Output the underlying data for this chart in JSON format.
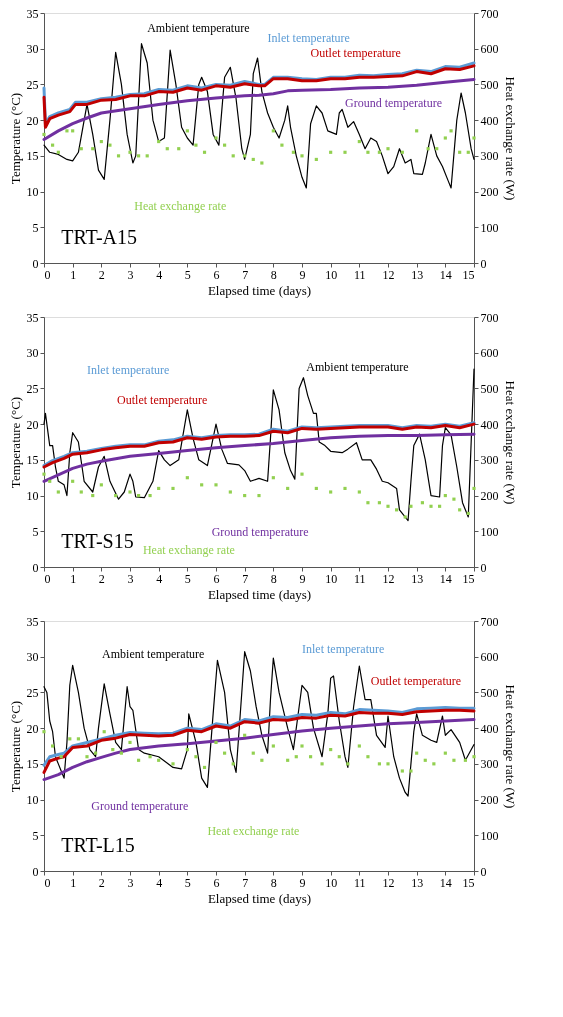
{
  "chart_data": [
    {
      "type": "line",
      "xlabel": "Elapsed time (days)",
      "ylabel": "Temperature (°C)",
      "y2label": "Heat exchange rate (W)",
      "xlim": [
        0,
        15
      ],
      "xticks": [
        0,
        1,
        2,
        3,
        4,
        5,
        6,
        7,
        8,
        9,
        10,
        11,
        12,
        13,
        14,
        15
      ],
      "ylim": [
        0,
        35
      ],
      "yticks": [
        0,
        5,
        10,
        15,
        20,
        25,
        30,
        35
      ],
      "y2lim": [
        0,
        700
      ],
      "y2ticks": [
        0,
        100,
        200,
        300,
        400,
        500,
        600,
        700
      ],
      "grid": false,
      "annotations": [
        "TRT-A15"
      ],
      "series": [
        {
          "name": "Ambient temperature",
          "color": "#000000",
          "x": [
            0,
            0.2,
            0.5,
            0.8,
            1.0,
            1.2,
            1.5,
            1.7,
            1.9,
            2.1,
            2.3,
            2.5,
            2.7,
            2.9,
            3.1,
            3.2,
            3.4,
            3.6,
            3.8,
            4.0,
            4.2,
            4.4,
            4.6,
            4.8,
            5.0,
            5.2,
            5.4,
            5.5,
            5.7,
            5.9,
            6.1,
            6.3,
            6.5,
            6.7,
            6.9,
            7.0,
            7.2,
            7.3,
            7.45,
            7.6,
            7.8,
            8.0,
            8.2,
            8.4,
            8.5,
            8.6,
            8.8,
            9.0,
            9.15,
            9.3,
            9.5,
            9.7,
            9.9,
            10.2,
            10.3,
            10.4,
            10.6,
            10.8,
            11.0,
            11.2,
            11.4,
            11.6,
            11.8,
            12.0,
            12.2,
            12.4,
            12.6,
            12.8,
            12.9,
            13.2,
            13.3,
            13.5,
            13.7,
            13.9,
            14.1,
            14.2,
            14.4,
            14.55,
            14.7,
            14.9,
            15
          ],
          "values": [
            16.5,
            15.5,
            15.2,
            14.5,
            14.3,
            15.5,
            22.2,
            18,
            13,
            11.7,
            20,
            29.5,
            25,
            18,
            14,
            15,
            30.7,
            28,
            20,
            17,
            17.5,
            29.8,
            25,
            19,
            17.5,
            16.5,
            25,
            26,
            24,
            18,
            16.5,
            26,
            27.4,
            23,
            16,
            14.5,
            18,
            26.5,
            28.7,
            24,
            21,
            19,
            17.5,
            20,
            22,
            19,
            15,
            12,
            10.5,
            19.5,
            22,
            21,
            18.5,
            18,
            21,
            21.5,
            19,
            19.8,
            18,
            16,
            17.5,
            17,
            15,
            12.5,
            13.5,
            16,
            14,
            14.5,
            12.5,
            12.4,
            14,
            18,
            15,
            13.5,
            11.5,
            10.5,
            20,
            23.8,
            21,
            16,
            14.5
          ]
        },
        {
          "name": "Inlet temperature",
          "color": "#5b9bd5",
          "x": [
            0,
            0.05,
            0.2,
            0.5,
            0.9,
            1.1,
            1.5,
            2,
            2.5,
            3,
            3.5,
            4,
            4.5,
            5,
            5.5,
            6,
            6.5,
            7,
            7.5,
            7.7,
            8,
            8.5,
            9,
            9.5,
            10,
            10.5,
            11,
            11.5,
            12,
            12.5,
            13,
            13.5,
            14,
            14.5,
            15
          ],
          "values": [
            24.5,
            19.5,
            20.5,
            21,
            21.5,
            22.5,
            22.5,
            23,
            23.2,
            23.6,
            23.7,
            24.3,
            24.2,
            24.8,
            24.5,
            25,
            24.9,
            25.4,
            25,
            25,
            26,
            26,
            25.8,
            25.7,
            26,
            26,
            26.3,
            26.2,
            26.4,
            26.5,
            27,
            26.8,
            27.5,
            27.4,
            28
          ]
        },
        {
          "name": "Outlet temperature",
          "color": "#c00000",
          "x": [
            0,
            0.05,
            0.2,
            0.5,
            0.9,
            1.1,
            1.5,
            2,
            2.5,
            3,
            3.5,
            4,
            4.5,
            5,
            5.5,
            6,
            6.5,
            7,
            7.5,
            7.7,
            8,
            8.5,
            9,
            9.5,
            10,
            10.5,
            11,
            11.5,
            12,
            12.5,
            13,
            13.5,
            14,
            14.5,
            15
          ],
          "values": [
            23.2,
            19,
            20.2,
            20.7,
            21.2,
            22.2,
            22.2,
            22.8,
            22.9,
            23.4,
            23.4,
            24,
            23.9,
            24.5,
            24.2,
            24.8,
            24.6,
            25.1,
            24.8,
            24.8,
            25.8,
            25.8,
            25.5,
            25.5,
            25.8,
            25.8,
            26,
            26,
            26.1,
            26.2,
            26.8,
            26.5,
            27.2,
            27.1,
            27.6
          ]
        },
        {
          "name": "Ground temperature",
          "color": "#7030a0",
          "x": [
            0,
            0.5,
            1,
            1.5,
            2,
            3,
            4,
            5,
            6,
            7,
            7.5,
            8,
            8.5,
            9,
            10,
            11,
            12,
            13,
            14,
            15
          ],
          "values": [
            17.3,
            18.5,
            19.5,
            20.3,
            21,
            21.6,
            22.2,
            22.7,
            23.1,
            23.4,
            23.5,
            23.7,
            24.1,
            24.2,
            24.3,
            24.5,
            24.6,
            24.9,
            25.3,
            25.7
          ]
        },
        {
          "name": "Heat exchange rate",
          "color": "#92d050",
          "type": "scatter",
          "axis": "y2",
          "marker": "square",
          "x": [
            0,
            0.3,
            0.5,
            0.8,
            1,
            1.3,
            1.7,
            2,
            2.3,
            2.6,
            3,
            3.3,
            3.6,
            4,
            4.3,
            4.7,
            5,
            5.3,
            5.6,
            6,
            6.3,
            6.6,
            7,
            7.3,
            7.6,
            8,
            8.3,
            8.7,
            9,
            9.5,
            10,
            10.5,
            11,
            11.3,
            11.7,
            12,
            12.5,
            13,
            13.4,
            13.7,
            14,
            14.2,
            14.5,
            14.8,
            15
          ],
          "values": [
            360,
            330,
            310,
            370,
            370,
            320,
            320,
            340,
            330,
            300,
            310,
            300,
            300,
            340,
            320,
            320,
            370,
            330,
            310,
            350,
            330,
            300,
            300,
            290,
            280,
            370,
            330,
            310,
            300,
            290,
            310,
            310,
            340,
            310,
            310,
            320,
            310,
            370,
            320,
            320,
            350,
            370,
            310,
            310,
            350
          ]
        }
      ]
    },
    {
      "type": "line",
      "xlabel": "Elapsed time (days)",
      "ylabel": "Temperature (°C)",
      "y2label": "Heat exchange rate (W)",
      "xlim": [
        0,
        15
      ],
      "xticks": [
        0,
        1,
        2,
        3,
        4,
        5,
        6,
        7,
        8,
        9,
        10,
        11,
        12,
        13,
        14,
        15
      ],
      "ylim": [
        0,
        35
      ],
      "yticks": [
        0,
        5,
        10,
        15,
        20,
        25,
        30,
        35
      ],
      "y2lim": [
        0,
        700
      ],
      "y2ticks": [
        0,
        100,
        200,
        300,
        400,
        500,
        600,
        700
      ],
      "grid": false,
      "annotations": [
        "TRT-S15"
      ],
      "series": [
        {
          "name": "Ambient temperature",
          "color": "#000000",
          "x": [
            0,
            0.05,
            0.2,
            0.3,
            0.4,
            0.5,
            0.7,
            0.8,
            0.9,
            1.0,
            1.2,
            1.4,
            1.7,
            1.9,
            2.1,
            2.3,
            2.6,
            2.8,
            3.0,
            3.1,
            3.2,
            3.5,
            3.8,
            4.0,
            4.2,
            4.4,
            4.7,
            5.0,
            5.2,
            5.4,
            5.7,
            6.0,
            6.2,
            6.4,
            6.8,
            7.0,
            7.2,
            7.5,
            7.8,
            7.9,
            8.0,
            8.2,
            8.4,
            8.6,
            8.75,
            8.9,
            9.05,
            9.2,
            9.4,
            9.5,
            9.6,
            9.8,
            10.0,
            10.4,
            10.6,
            10.9,
            11.1,
            11.4,
            11.6,
            11.8,
            12.0,
            12.3,
            12.4,
            12.7,
            12.8,
            12.9,
            13.1,
            13.3,
            13.5,
            13.8,
            13.9,
            14.0,
            14.2,
            14.4,
            14.6,
            14.8,
            15
          ],
          "values": [
            20,
            21.5,
            17,
            17,
            14,
            12,
            11.5,
            10,
            16,
            18.8,
            17.5,
            12,
            10.5,
            14,
            15.5,
            12,
            9.5,
            10.5,
            13,
            12,
            9.8,
            9.7,
            12,
            16.3,
            15,
            14.2,
            15,
            22,
            18,
            15,
            14.2,
            20,
            16.5,
            14.5,
            14.3,
            13.5,
            12,
            12.4,
            12,
            18,
            24.8,
            22,
            16,
            13.5,
            12.3,
            25,
            26.5,
            24,
            21.5,
            21.5,
            17.5,
            17,
            16.2,
            16,
            16.5,
            17.4,
            15,
            15,
            13.7,
            12,
            11.8,
            11,
            8,
            6.5,
            12,
            17,
            18.6,
            15,
            10,
            9.8,
            17,
            19.5,
            18.5,
            14,
            9,
            7,
            27.7
          ]
        },
        {
          "name": "Inlet temperature",
          "color": "#5b9bd5",
          "x": [
            0,
            0.3,
            0.7,
            1,
            1.5,
            2,
            2.5,
            3,
            3.5,
            4,
            4.5,
            5,
            5.5,
            6,
            6.5,
            7,
            7.5,
            8,
            8.5,
            9,
            9.5,
            10,
            11,
            12,
            12.5,
            13,
            13.5,
            14,
            14.5,
            15
          ],
          "values": [
            14.2,
            14.9,
            15.5,
            16,
            16.2,
            16.6,
            16.9,
            17.1,
            17.1,
            17.6,
            17.8,
            18.3,
            18.1,
            18.4,
            18.5,
            18.5,
            18.6,
            19.3,
            19,
            19.6,
            19.5,
            19.6,
            19.8,
            19.8,
            19.5,
            19.8,
            19.7,
            20,
            19.7,
            20.2
          ]
        },
        {
          "name": "Outlet temperature",
          "color": "#c00000",
          "x": [
            0,
            0.3,
            0.7,
            1,
            1.5,
            2,
            2.5,
            3,
            3.5,
            4,
            4.5,
            5,
            5.5,
            6,
            6.5,
            7,
            7.5,
            8,
            8.5,
            9,
            9.5,
            10,
            11,
            12,
            12.5,
            13,
            13.5,
            14,
            14.5,
            15
          ],
          "values": [
            14,
            14.6,
            15.2,
            15.8,
            16,
            16.4,
            16.7,
            16.9,
            16.9,
            17.4,
            17.5,
            18.1,
            17.9,
            18.2,
            18.3,
            18.3,
            18.4,
            19,
            18.8,
            19.4,
            19.3,
            19.4,
            19.6,
            19.6,
            19.3,
            19.6,
            19.5,
            19.8,
            19.5,
            20
          ]
        },
        {
          "name": "Ground temperature",
          "color": "#7030a0",
          "x": [
            0,
            0.5,
            1,
            1.5,
            2,
            3,
            4,
            5,
            6,
            7,
            8,
            9,
            10,
            11,
            12,
            13,
            14,
            15
          ],
          "values": [
            12,
            12.9,
            13.8,
            14.4,
            14.8,
            15.5,
            15.9,
            16.3,
            16.7,
            17,
            17.3,
            17.7,
            18.1,
            18.3,
            18.4,
            18.4,
            18.5,
            18.6
          ]
        },
        {
          "name": "Heat exchange rate",
          "color": "#92d050",
          "type": "scatter",
          "axis": "y2",
          "marker": "square",
          "x": [
            0,
            0.2,
            0.5,
            1,
            1.3,
            1.7,
            2,
            2.5,
            3,
            3.3,
            3.7,
            4,
            4.5,
            5,
            5.5,
            6,
            6.5,
            7,
            7.5,
            8,
            8.5,
            9,
            9.5,
            10,
            10.5,
            11,
            11.3,
            11.7,
            12,
            12.3,
            12.6,
            12.8,
            13.2,
            13.5,
            13.8,
            14,
            14.3,
            14.5,
            14.8,
            15
          ],
          "values": [
            260,
            240,
            210,
            240,
            210,
            200,
            230,
            200,
            210,
            200,
            200,
            220,
            220,
            250,
            230,
            230,
            210,
            200,
            200,
            250,
            220,
            260,
            220,
            210,
            220,
            210,
            180,
            180,
            170,
            160,
            140,
            170,
            180,
            170,
            170,
            200,
            190,
            160,
            150,
            220
          ]
        }
      ]
    },
    {
      "type": "line",
      "xlabel": "Elapsed time (days)",
      "ylabel": "Temperature (°C)",
      "y2label": "Heat exchange rate (W)",
      "xlim": [
        0,
        15
      ],
      "xticks": [
        0,
        1,
        2,
        3,
        4,
        5,
        6,
        7,
        8,
        9,
        10,
        11,
        12,
        13,
        14,
        15
      ],
      "ylim": [
        0,
        35
      ],
      "yticks": [
        0,
        5,
        10,
        15,
        20,
        25,
        30,
        35
      ],
      "y2lim": [
        0,
        700
      ],
      "y2ticks": [
        0,
        100,
        200,
        300,
        400,
        500,
        600,
        700
      ],
      "grid": false,
      "annotations": [
        "TRT-L15"
      ],
      "series": [
        {
          "name": "Ambient temperature",
          "color": "#000000",
          "x": [
            0,
            0.1,
            0.2,
            0.3,
            0.4,
            0.5,
            0.6,
            0.7,
            0.8,
            0.9,
            1.0,
            1.2,
            1.4,
            1.6,
            1.8,
            1.9,
            2.1,
            2.3,
            2.5,
            2.7,
            2.9,
            3.0,
            3.1,
            3.3,
            3.5,
            4,
            4.5,
            4.8,
            5,
            5.05,
            5.3,
            5.5,
            5.7,
            5.9,
            6.05,
            6.3,
            6.5,
            6.7,
            6.9,
            7.0,
            7.2,
            7.4,
            7.6,
            7.8,
            7.9,
            8.0,
            8.2,
            8.5,
            8.7,
            8.9,
            9.0,
            9.2,
            9.4,
            9.7,
            9.9,
            10.0,
            10.1,
            10.3,
            10.5,
            10.6,
            10.8,
            11.0,
            11.2,
            11.4,
            11.6,
            11.9,
            12.0,
            12.2,
            12.4,
            12.6,
            12.7,
            12.9,
            13.0,
            13.2,
            13.5,
            13.7,
            13.9,
            14.0,
            14.2,
            14.5,
            14.7,
            15
          ],
          "values": [
            25.8,
            25,
            21,
            19.5,
            16,
            15,
            14,
            13,
            18,
            26,
            28.8,
            25,
            20,
            17,
            16,
            20,
            26.2,
            22,
            18,
            17,
            25.8,
            23,
            22.5,
            17,
            16.5,
            16,
            14.5,
            14.3,
            17,
            22,
            18,
            13,
            11.7,
            22,
            29.5,
            25,
            17,
            13.8,
            25,
            30.7,
            28,
            23,
            19,
            16.5,
            24,
            29.8,
            25,
            20,
            17,
            23,
            26,
            25,
            20,
            16,
            22,
            27,
            27.3,
            21,
            16,
            14.5,
            23,
            28.7,
            24,
            24,
            19,
            17.3,
            21.7,
            16,
            13,
            11,
            10.5,
            19.5,
            22,
            19,
            18.3,
            18,
            21.7,
            19,
            19.8,
            18,
            15.5,
            17.7
          ]
        },
        {
          "name": "Inlet temperature",
          "color": "#5b9bd5",
          "x": [
            0,
            0.2,
            0.5,
            0.7,
            1,
            1.5,
            2,
            2.5,
            3,
            3.5,
            4,
            4.5,
            5,
            5.5,
            6,
            6.5,
            7,
            7.5,
            8,
            8.5,
            9,
            9.5,
            10,
            10.5,
            11,
            11.5,
            12,
            12.5,
            13,
            13.5,
            14,
            14.5,
            15
          ],
          "values": [
            14.8,
            16,
            16.3,
            16.5,
            17.5,
            18,
            18.5,
            19,
            19.4,
            19.3,
            19.2,
            19.3,
            20,
            19.8,
            20.6,
            20.3,
            21.2,
            21,
            21.6,
            21.5,
            21.9,
            21.8,
            22.2,
            22,
            22.6,
            22.5,
            22.4,
            22.2,
            22.7,
            22.8,
            22.9,
            22.8,
            22.8
          ]
        },
        {
          "name": "Outlet temperature",
          "color": "#c00000",
          "x": [
            0,
            0.2,
            0.5,
            0.7,
            1,
            1.5,
            2,
            2.5,
            3,
            3.5,
            4,
            4.5,
            5,
            5.5,
            6,
            6.5,
            7,
            7.5,
            8,
            8.5,
            9,
            9.5,
            10,
            10.5,
            11,
            11.5,
            12,
            12.5,
            13,
            13.5,
            14,
            14.5,
            15
          ],
          "values": [
            13.8,
            15.4,
            15.8,
            16,
            17.3,
            17.5,
            18.3,
            18.6,
            19.1,
            19,
            18.9,
            19,
            19.7,
            19.5,
            20.3,
            20,
            20.9,
            20.7,
            21.2,
            21.1,
            21.5,
            21.4,
            21.8,
            21.7,
            22.2,
            22.1,
            22.1,
            21.9,
            22.3,
            22.4,
            22.5,
            22.5,
            22.4
          ]
        },
        {
          "name": "Ground temperature",
          "color": "#7030a0",
          "x": [
            0,
            0.5,
            1,
            1.5,
            2,
            2.5,
            3,
            4,
            5,
            6,
            7,
            8,
            9,
            10,
            11,
            12,
            13,
            14,
            15
          ],
          "values": [
            12.8,
            13.5,
            14.5,
            15.3,
            15.9,
            16.5,
            17,
            17.5,
            17.8,
            18.2,
            18.6,
            19.1,
            19.6,
            20,
            20.3,
            20.6,
            20.8,
            21,
            21.2
          ]
        },
        {
          "name": "Heat exchange rate",
          "color": "#92d050",
          "type": "scatter",
          "axis": "y2",
          "marker": "square",
          "x": [
            0,
            0.3,
            0.6,
            0.9,
            1.2,
            1.5,
            1.8,
            2.1,
            2.4,
            2.7,
            3,
            3.3,
            3.7,
            4,
            4.5,
            5,
            5.3,
            5.6,
            6,
            6.3,
            6.6,
            7,
            7.3,
            7.6,
            8,
            8.5,
            8.8,
            9,
            9.3,
            9.7,
            10,
            10.3,
            10.6,
            11,
            11.3,
            11.7,
            12,
            12.5,
            12.8,
            13,
            13.3,
            13.6,
            14,
            14.3,
            14.7,
            15
          ],
          "values": [
            390,
            350,
            320,
            370,
            370,
            320,
            330,
            390,
            340,
            330,
            360,
            310,
            320,
            310,
            300,
            340,
            320,
            290,
            360,
            330,
            300,
            380,
            330,
            310,
            350,
            310,
            320,
            350,
            320,
            300,
            340,
            320,
            300,
            350,
            320,
            300,
            300,
            280,
            280,
            330,
            310,
            300,
            330,
            310,
            310,
            320
          ]
        }
      ]
    }
  ]
}
